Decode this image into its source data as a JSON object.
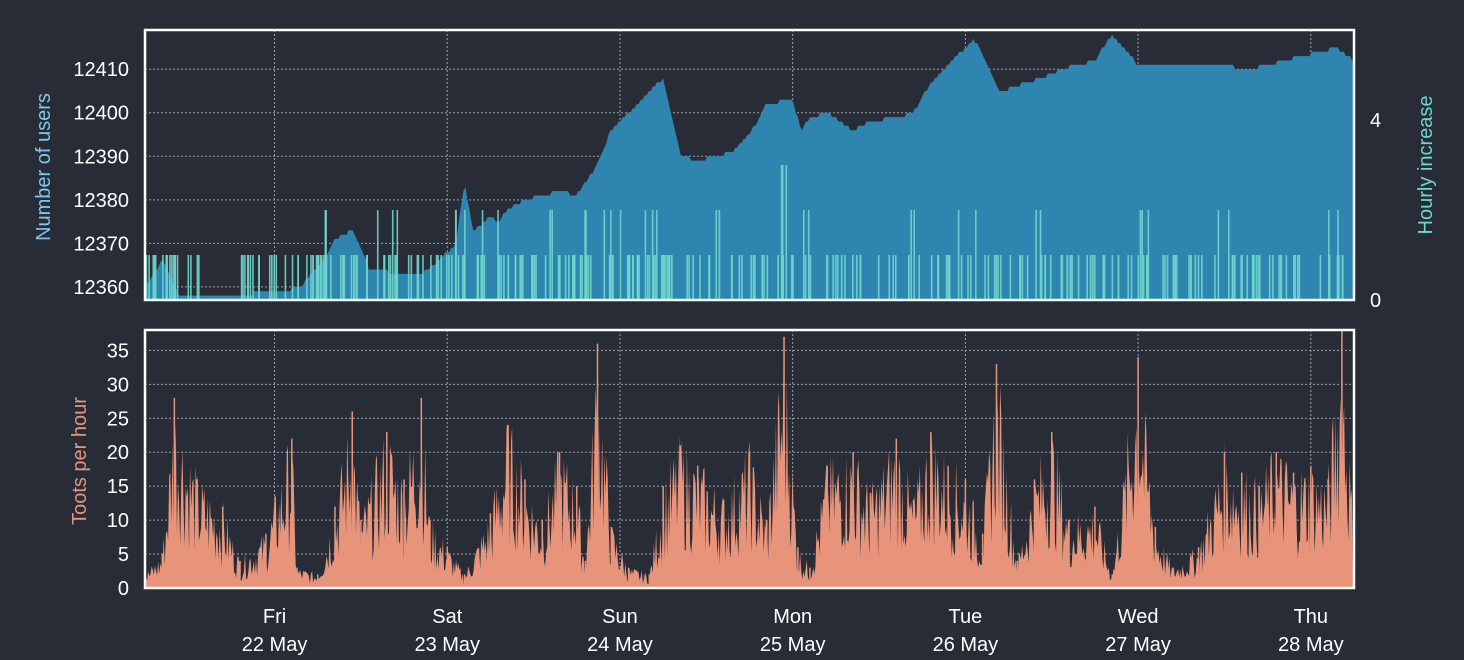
{
  "colors": {
    "background": "#282c36",
    "users_fill": "#2e86b0",
    "increase_fill": "#6fd6cc",
    "toots_fill": "#e8947a",
    "axis_text": "#ffffff",
    "users_label": "#7fc8ee",
    "increase_label": "#6fd6cc",
    "toots_label": "#e8947a",
    "grid": "#9aa0aa",
    "frame": "#ffffff"
  },
  "chart_data": [
    {
      "type": "area",
      "ylabel": "Number of users",
      "y2label": "Hourly increase",
      "ylim": [
        12357,
        12419
      ],
      "y2lim": [
        0,
        6
      ],
      "yticks": [
        12360,
        12370,
        12380,
        12390,
        12400,
        12410
      ],
      "y2ticks": [
        0,
        4
      ],
      "xlim": [
        0,
        7
      ],
      "grid": true,
      "series": [
        {
          "kind": "users",
          "x": [
            0,
            0.1,
            0.2,
            0.45,
            0.8,
            0.9,
            1.05,
            1.1,
            1.2,
            1.3,
            1.35,
            1.45,
            1.6,
            1.7,
            1.8,
            1.85,
            1.9,
            2.0,
            2.05,
            2.1,
            2.2,
            2.3,
            2.4,
            2.5,
            2.6,
            2.7,
            2.9,
            3.0,
            3.1,
            3.2,
            3.3,
            3.4,
            3.5,
            3.6,
            3.75,
            3.8,
            3.85,
            3.95,
            4.1,
            4.2,
            4.35,
            4.45,
            4.5,
            4.6,
            4.75,
            4.8,
            4.95,
            5.05,
            5.1,
            5.2,
            5.3,
            5.5,
            5.6,
            5.75,
            6.0,
            6.2,
            6.4,
            6.5,
            6.6,
            6.8,
            6.9,
            7.0
          ],
          "values": [
            12360,
            12366,
            12358,
            12358,
            12359,
            12360,
            12367,
            12371,
            12373,
            12364,
            12364,
            12363,
            12363,
            12366,
            12370,
            12384,
            12373,
            12376,
            12375,
            12378,
            12380,
            12381,
            12382,
            12381,
            12387,
            12396,
            12404,
            12408,
            12390,
            12389,
            12390,
            12391,
            12395,
            12402,
            12403,
            12396,
            12399,
            12400,
            12396,
            12398,
            12399,
            12400,
            12404,
            12409,
            12415,
            12417,
            12405,
            12406,
            12407,
            12408,
            12410,
            12412,
            12418,
            12411,
            12411,
            12411,
            12410,
            12411,
            12412,
            12414,
            12415,
            12412
          ]
        },
        {
          "kind": "increase",
          "note_values": "hourly new users, bars",
          "x": [
            0.05,
            0.15,
            0.3,
            0.6,
            0.75,
            0.9,
            1.0,
            1.05,
            1.15,
            1.25,
            1.4,
            1.55,
            1.7,
            1.8,
            1.9,
            2.0,
            2.1,
            2.2,
            2.3,
            2.4,
            2.5,
            2.6,
            2.7,
            2.8,
            2.9,
            3.0,
            3.15,
            3.3,
            3.45,
            3.55,
            3.7,
            3.85,
            4.0,
            4.15,
            4.3,
            4.45,
            4.6,
            4.75,
            4.9,
            5.05,
            5.2,
            5.35,
            5.5,
            5.65,
            5.8,
            5.95,
            6.1,
            6.25,
            6.4,
            6.55,
            6.7,
            6.85,
            6.95
          ],
          "values": [
            1,
            1,
            1,
            1,
            1,
            1,
            1,
            2,
            1,
            1,
            2,
            1,
            1,
            2,
            1,
            2,
            1,
            1,
            1,
            2,
            1,
            2,
            2,
            1,
            2,
            1,
            1,
            2,
            1,
            1,
            3,
            2,
            1,
            1,
            1,
            2,
            1,
            2,
            1,
            1,
            2,
            1,
            1,
            1,
            2,
            1,
            1,
            2,
            1,
            1,
            1,
            2,
            1
          ]
        }
      ]
    },
    {
      "type": "area",
      "ylabel": "Toots per hour",
      "ylim": [
        0,
        38
      ],
      "yticks": [
        0,
        5,
        10,
        15,
        20,
        25,
        30,
        35
      ],
      "xlim": [
        0,
        7
      ],
      "xticks": [
        {
          "x": 0.75,
          "day": "Fri",
          "date": "22 May"
        },
        {
          "x": 1.75,
          "day": "Sat",
          "date": "23 May"
        },
        {
          "x": 2.75,
          "day": "Sun",
          "date": "24 May"
        },
        {
          "x": 3.75,
          "day": "Mon",
          "date": "25 May"
        },
        {
          "x": 4.75,
          "day": "Tue",
          "date": "26 May"
        },
        {
          "x": 5.75,
          "day": "Wed",
          "date": "27 May"
        },
        {
          "x": 6.75,
          "day": "Thu",
          "date": "28 May"
        }
      ],
      "grid": true,
      "series": [
        {
          "kind": "toots",
          "x": [
            0.0,
            0.1,
            0.17,
            0.3,
            0.45,
            0.55,
            0.7,
            0.85,
            0.88,
            1.0,
            1.1,
            1.2,
            1.25,
            1.4,
            1.5,
            1.6,
            1.65,
            1.75,
            1.85,
            2.0,
            2.1,
            2.2,
            2.3,
            2.4,
            2.5,
            2.55,
            2.62,
            2.7,
            2.8,
            2.92,
            3.0,
            3.1,
            3.2,
            3.35,
            3.5,
            3.6,
            3.7,
            3.78,
            3.85,
            3.95,
            4.1,
            4.2,
            4.35,
            4.45,
            4.55,
            4.65,
            4.75,
            4.85,
            4.93,
            5.05,
            5.15,
            5.25,
            5.35,
            5.5,
            5.6,
            5.75,
            5.85,
            5.95,
            6.1,
            6.25,
            6.35,
            6.45,
            6.55,
            6.65,
            6.75,
            6.85,
            6.93,
            7.0
          ],
          "values": [
            2,
            5,
            28,
            16,
            12,
            4,
            8,
            22,
            3,
            2,
            12,
            26,
            10,
            23,
            16,
            28,
            10,
            6,
            2,
            11,
            24,
            16,
            10,
            20,
            15,
            4,
            36,
            9,
            3,
            2,
            15,
            21,
            18,
            13,
            20,
            10,
            37,
            6,
            3,
            18,
            20,
            14,
            22,
            13,
            23,
            18,
            16,
            8,
            33,
            4,
            16,
            23,
            10,
            12,
            2,
            34,
            9,
            3,
            6,
            20,
            17,
            15,
            20,
            17,
            18,
            16,
            38,
            9
          ]
        }
      ]
    }
  ]
}
